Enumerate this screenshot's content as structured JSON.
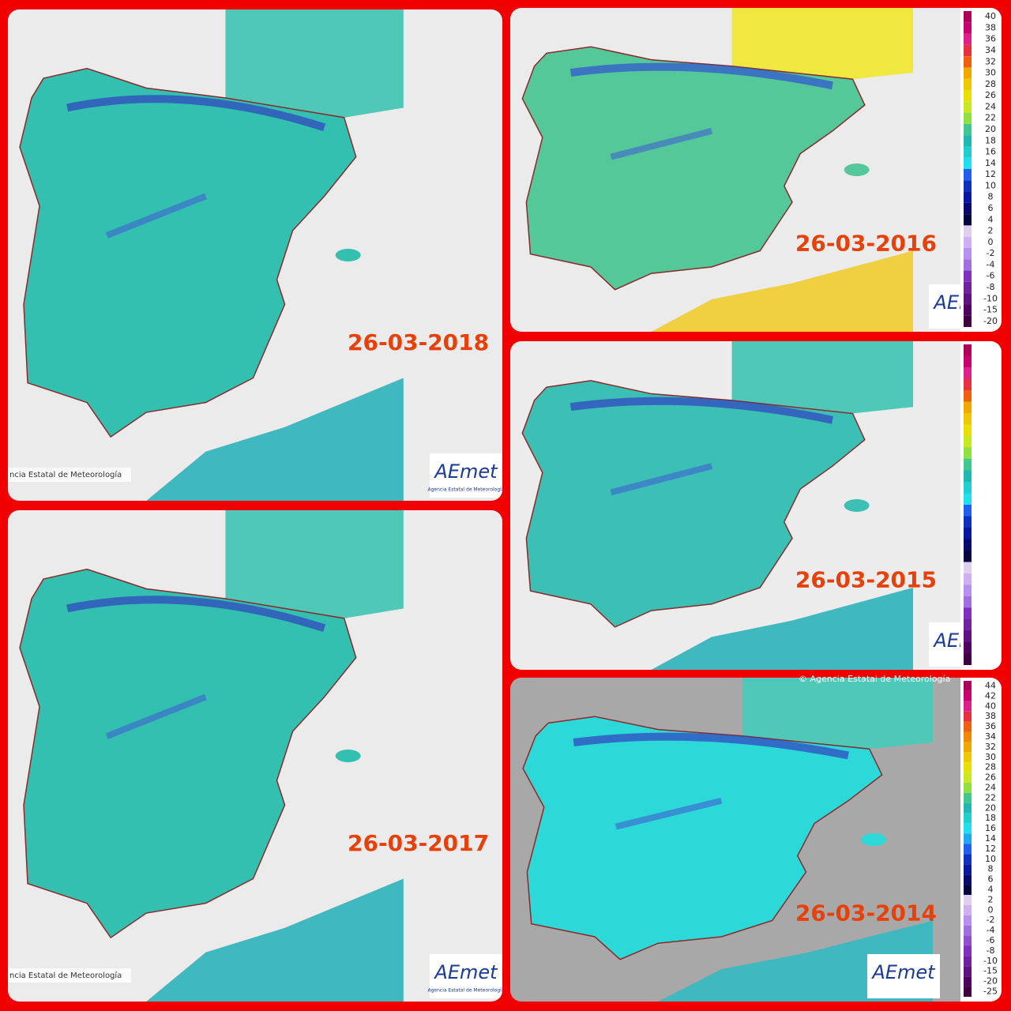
{
  "panels": [
    {
      "date": "26-03-2018",
      "credit": "ncia Estatal de Meteorología",
      "logo": "AEmet",
      "logo_caption": "Agencia Estatal de Meteorología"
    },
    {
      "date": "26-03-2016",
      "logo": "AEmet",
      "legend": [
        40,
        38,
        36,
        34,
        32,
        30,
        28,
        26,
        24,
        22,
        20,
        18,
        16,
        14,
        12,
        10,
        8,
        6,
        4,
        2,
        0,
        -2,
        -4,
        -6,
        -8,
        -10,
        -15,
        -20
      ]
    },
    {
      "date": "26-03-2015",
      "logo": "AEmet"
    },
    {
      "date": "26-03-2017",
      "credit": "ncia Estatal de Meteorología",
      "logo": "AEmet",
      "logo_caption": "Agencia Estatal de Meteorología"
    },
    {
      "date": "26-03-2014",
      "credit": "© Agencia Estatal de Meteorología",
      "logo": "AEmet",
      "legend": [
        44,
        42,
        40,
        38,
        36,
        34,
        32,
        30,
        28,
        26,
        24,
        22,
        20,
        18,
        16,
        14,
        12,
        10,
        8,
        6,
        4,
        2,
        0,
        -2,
        -4,
        -6,
        -8,
        -10,
        -15,
        -20,
        -25
      ]
    }
  ]
}
